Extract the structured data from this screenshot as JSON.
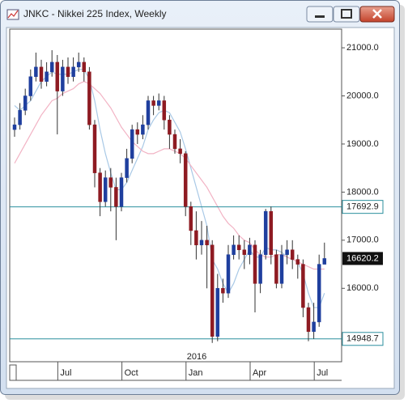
{
  "chart_data": {
    "type": "candlestick",
    "title": "JNKC - Nikkei 225 Index, Weekly",
    "year_label": "2016",
    "categories": [
      null,
      null,
      null,
      null,
      null,
      null,
      null,
      null,
      null,
      "Jul",
      null,
      null,
      null,
      null,
      null,
      null,
      null,
      null,
      null,
      null,
      null,
      "Oct",
      null,
      null,
      null,
      null,
      null,
      null,
      null,
      null,
      null,
      null,
      null,
      "Jan",
      null,
      null,
      null,
      null,
      null,
      null,
      null,
      null,
      null,
      null,
      null,
      "Apr",
      null,
      null,
      null,
      null,
      null,
      null,
      null,
      null,
      null,
      null,
      null,
      "Jul",
      null
    ],
    "open": [
      19300,
      19400,
      19700,
      20000,
      20400,
      20600,
      20300,
      20500,
      20700,
      20100,
      20600,
      20400,
      20600,
      20700,
      20500,
      19400,
      18400,
      17800,
      18300,
      18100,
      17700,
      18300,
      18700,
      19300,
      19200,
      19400,
      19900,
      19800,
      19900,
      19500,
      19200,
      18900,
      18800,
      17700,
      17200,
      16900,
      17000,
      16900,
      15000,
      16000,
      15900,
      16700,
      16900,
      16800,
      16700,
      16900,
      16100,
      16700,
      17600,
      16700,
      16100,
      16700,
      16800,
      16600,
      16500,
      15600,
      15100,
      15300,
      16500
    ],
    "high": [
      19550,
      19850,
      20150,
      20550,
      20900,
      20750,
      20700,
      20950,
      20850,
      20750,
      20800,
      20800,
      20900,
      20800,
      20600,
      19500,
      18500,
      18450,
      18500,
      18300,
      18400,
      18900,
      19400,
      19450,
      19600,
      20000,
      20000,
      20050,
      20000,
      19600,
      19300,
      19100,
      18850,
      17800,
      17600,
      17400,
      17300,
      17000,
      16300,
      16200,
      16900,
      17100,
      17100,
      17000,
      17050,
      17000,
      16800,
      17650,
      17700,
      16800,
      16900,
      17000,
      17000,
      16700,
      16600,
      15700,
      15700,
      16700,
      16950
    ],
    "low": [
      19150,
      19300,
      19600,
      19900,
      20300,
      20150,
      20200,
      20400,
      19200,
      20000,
      20250,
      20300,
      20500,
      20300,
      19300,
      18100,
      17500,
      17700,
      17600,
      17000,
      17600,
      18200,
      18600,
      19000,
      19100,
      19300,
      19600,
      19700,
      19300,
      18900,
      18800,
      18600,
      17500,
      16900,
      16600,
      16700,
      16000,
      14865,
      14900,
      15700,
      15800,
      16600,
      16600,
      16400,
      16500,
      15500,
      15900,
      16600,
      16500,
      16000,
      16000,
      16500,
      16400,
      16200,
      15400,
      14900,
      14950,
      15200,
      16500
    ],
    "close": [
      19400,
      19700,
      20000,
      20400,
      20600,
      20300,
      20500,
      20700,
      20100,
      20600,
      20400,
      20600,
      20700,
      20500,
      19400,
      18400,
      17800,
      18300,
      18100,
      17700,
      18300,
      18700,
      19300,
      19200,
      19400,
      19900,
      19800,
      19900,
      19500,
      19200,
      18900,
      18800,
      17700,
      17200,
      16900,
      17000,
      16900,
      15000,
      16000,
      15900,
      16700,
      16900,
      16800,
      16700,
      16900,
      16100,
      16700,
      17600,
      16700,
      16100,
      16700,
      16800,
      16600,
      16500,
      15600,
      15100,
      15300,
      16500,
      16620.2
    ],
    "up_color": "#1f3f9e",
    "down_color": "#8e1b22",
    "series": [
      {
        "color": "#a9c9e6",
        "values": [
          19800,
          19700,
          19800,
          19900,
          20100,
          20300,
          20400,
          20500,
          20450,
          20450,
          20450,
          20500,
          20550,
          20550,
          20350,
          19900,
          19300,
          18800,
          18400,
          18050,
          18050,
          18200,
          18450,
          18700,
          18950,
          19300,
          19500,
          19650,
          19700,
          19650,
          19450,
          19250,
          18900,
          18500,
          18100,
          17700,
          17300,
          16600,
          16400,
          16100,
          15900,
          16100,
          16400,
          16600,
          16800,
          16650,
          16650,
          16850,
          16800,
          16800,
          16750,
          16650,
          16600,
          16550,
          16300,
          15900,
          15600,
          15600,
          15900
        ]
      },
      {
        "color": "#f2b3c4",
        "values": [
          18600,
          18800,
          19000,
          19200,
          19400,
          19600,
          19750,
          19900,
          19950,
          20050,
          20100,
          20150,
          20250,
          20300,
          20250,
          20150,
          20050,
          19900,
          19750,
          19550,
          19350,
          19200,
          19050,
          18950,
          18850,
          18800,
          18800,
          18850,
          18900,
          18900,
          18850,
          18800,
          18700,
          18550,
          18400,
          18250,
          18100,
          17900,
          17700,
          17500,
          17350,
          17250,
          17100,
          17000,
          16950,
          16800,
          16700,
          16650,
          16650,
          16700,
          16700,
          16650,
          16600,
          16550,
          16500,
          16450,
          16400,
          16400,
          16400
        ]
      }
    ],
    "hlines": [
      17692.9,
      14948.7
    ],
    "hline_color": "#2b8f9e",
    "ylim": [
      14474,
      21388
    ],
    "yticks": [
      {
        "value": 16000,
        "label": "16000.0"
      },
      {
        "value": 17000,
        "label": "17000.0"
      },
      {
        "value": 18000,
        "label": "18000.0"
      },
      {
        "value": 19000,
        "label": "19000.0"
      },
      {
        "value": 20000,
        "label": "20000.0"
      },
      {
        "value": 21000,
        "label": "21000.0"
      }
    ]
  }
}
